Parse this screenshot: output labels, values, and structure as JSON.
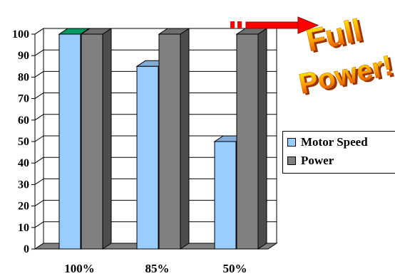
{
  "chart_data": {
    "type": "bar",
    "categories": [
      "100%",
      "85%",
      "50%"
    ],
    "series": [
      {
        "name": "Motor Speed",
        "values": [
          100,
          85,
          50
        ]
      },
      {
        "name": "Power",
        "values": [
          100,
          100,
          100
        ]
      }
    ],
    "ylim": [
      0,
      100
    ],
    "yticks": [
      "0",
      "10",
      "20",
      "30",
      "40",
      "50",
      "60",
      "70",
      "80",
      "90",
      "100"
    ],
    "grid": true,
    "legend_placement": "right",
    "colors": {
      "motor_speed": "#99ccff",
      "power": "#808080",
      "first_bar_top": "#009966"
    }
  },
  "annotation": {
    "line1": "Full",
    "line2": "Power!",
    "arrow_color": "#ff0000",
    "text_colors": [
      "#ffff00",
      "#ff9900",
      "#cc3300"
    ]
  }
}
